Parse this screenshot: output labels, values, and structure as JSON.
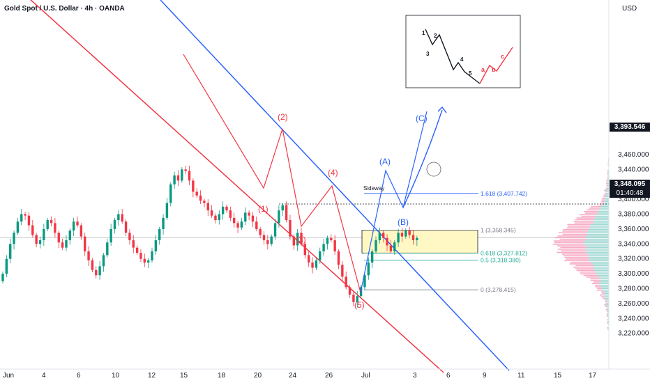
{
  "header": {
    "title": "Gold Spot / U.S. Dollar · 4h · OANDA",
    "currency": "USD"
  },
  "price_tags": {
    "level_price": "3,393.546",
    "last_price": "3,348.095",
    "countdown": "01:40:48"
  },
  "colors": {
    "up": "#089981",
    "down": "#f23645",
    "fib_blue": "#2962ff",
    "fib_green": "#22ab94",
    "fib_gray": "#787b86",
    "channel_red": "#f23645",
    "channel_blue": "#2962ff",
    "zone": "#fff8c4"
  },
  "chart_data": {
    "type": "candlestick",
    "symbol": "Gold Spot / U.S. Dollar",
    "timeframe": "4h",
    "ylim": [
      3210,
      3480
    ],
    "y_ticks": [
      "3,220.000",
      "3,240.000",
      "3,260.000",
      "3,280.000",
      "3,300.000",
      "3,320.000",
      "3,340.000",
      "3,360.000",
      "3,380.000",
      "3,400.000",
      "3,420.000",
      "3,440.000",
      "3,460.000"
    ],
    "x_ticks": [
      "Jun",
      "4",
      "6",
      "10",
      "12",
      "15",
      "18",
      "20",
      "24",
      "26",
      "Jul",
      "3",
      "6",
      "9",
      "11",
      "15",
      "17"
    ],
    "fib_levels": [
      {
        "label": "1.618 (3,407.742)",
        "value": 3407.742,
        "color": "blue"
      },
      {
        "label": "1 (3,358.345)",
        "value": 3358.345,
        "color": "gray"
      },
      {
        "label": "0.618 (3,327.812)",
        "value": 3327.812,
        "color": "green"
      },
      {
        "label": "0.5 (3,318.380)",
        "value": 3318.38,
        "color": "green"
      },
      {
        "label": "0 (3,278.415)",
        "value": 3278.415,
        "color": "gray"
      }
    ],
    "zone_label": "Sideway",
    "wave_labels_red": [
      "(1)",
      "(2)",
      "(3)",
      "(4)",
      "(5)"
    ],
    "wave_labels_blue": [
      "(A)",
      "(B)",
      "(C)"
    ],
    "inset_labels_black": [
      "1",
      "2",
      "3",
      "4",
      "5"
    ],
    "inset_labels_red": [
      "a",
      "b",
      "c"
    ],
    "candles_close": [
      3300,
      3320,
      3340,
      3355,
      3370,
      3380,
      3378,
      3365,
      3352,
      3340,
      3345,
      3360,
      3372,
      3368,
      3355,
      3342,
      3335,
      3345,
      3358,
      3370,
      3365,
      3350,
      3330,
      3318,
      3305,
      3298,
      3310,
      3325,
      3342,
      3360,
      3372,
      3380,
      3370,
      3355,
      3345,
      3335,
      3328,
      3320,
      3315,
      3318,
      3330,
      3345,
      3360,
      3375,
      3395,
      3420,
      3432,
      3425,
      3440,
      3438,
      3425,
      3410,
      3405,
      3398,
      3395,
      3385,
      3378,
      3372,
      3380,
      3390,
      3385,
      3375,
      3368,
      3362,
      3370,
      3382,
      3378,
      3370,
      3360,
      3352,
      3345,
      3340,
      3350,
      3368,
      3385,
      3392,
      3372,
      3350,
      3338,
      3355,
      3340,
      3325,
      3315,
      3308,
      3318,
      3330,
      3340,
      3348,
      3345,
      3330,
      3312,
      3296,
      3282,
      3272,
      3262,
      3270,
      3282,
      3298,
      3315,
      3330,
      3345,
      3355,
      3348,
      3338,
      3330,
      3342,
      3355,
      3350,
      3358,
      3352,
      3345,
      3348
    ],
    "volume_profile_peak": 3340
  }
}
